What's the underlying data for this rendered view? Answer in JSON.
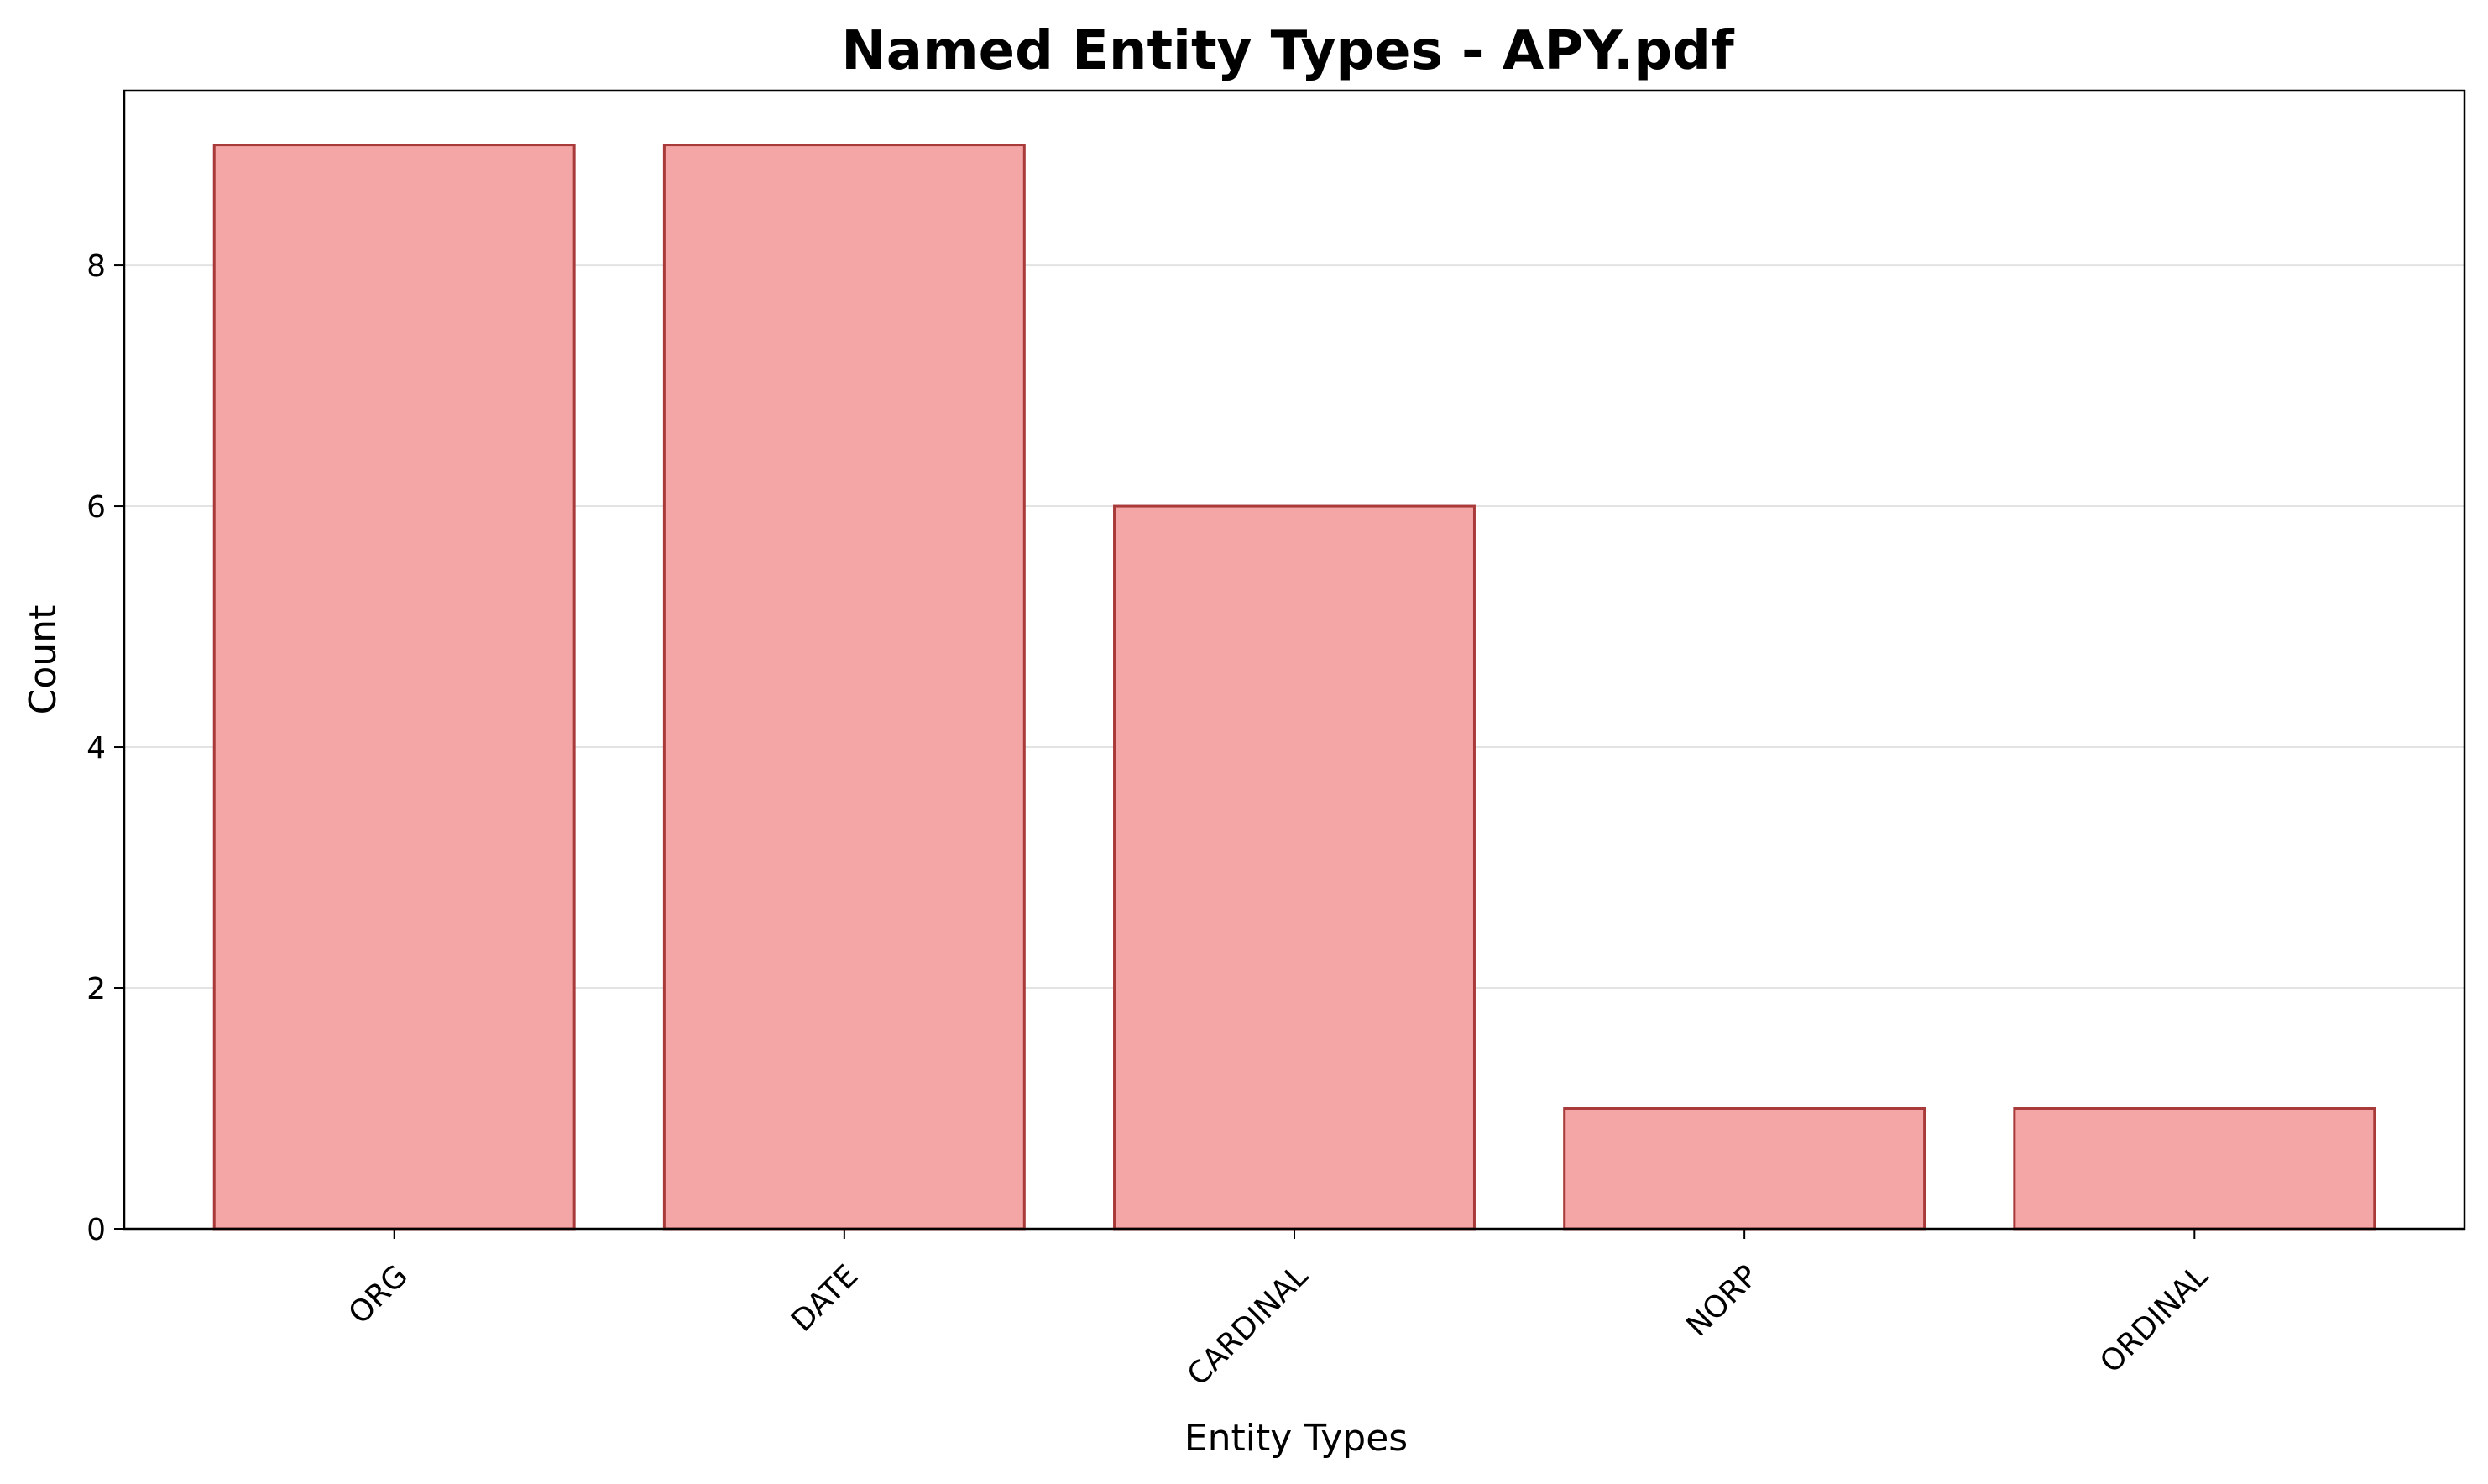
{
  "chart_data": {
    "type": "bar",
    "title": "Named Entity Types - APY.pdf",
    "xlabel": "Entity Types",
    "ylabel": "Count",
    "categories": [
      "ORG",
      "DATE",
      "CARDINAL",
      "NORP",
      "ORDINAL"
    ],
    "values": [
      9,
      9,
      6,
      1,
      1
    ],
    "ylim": [
      0,
      9.45
    ],
    "yticks": [
      0,
      2,
      4,
      6,
      8
    ],
    "x_tick_rotation_deg": 45,
    "grid": {
      "y": true,
      "x": false
    },
    "legend": "none",
    "colors": {
      "bar_fill": "#f4a6a6",
      "bar_edge": "#a83a3a",
      "grid": "#e3e3e3",
      "axes": "#000000"
    }
  }
}
